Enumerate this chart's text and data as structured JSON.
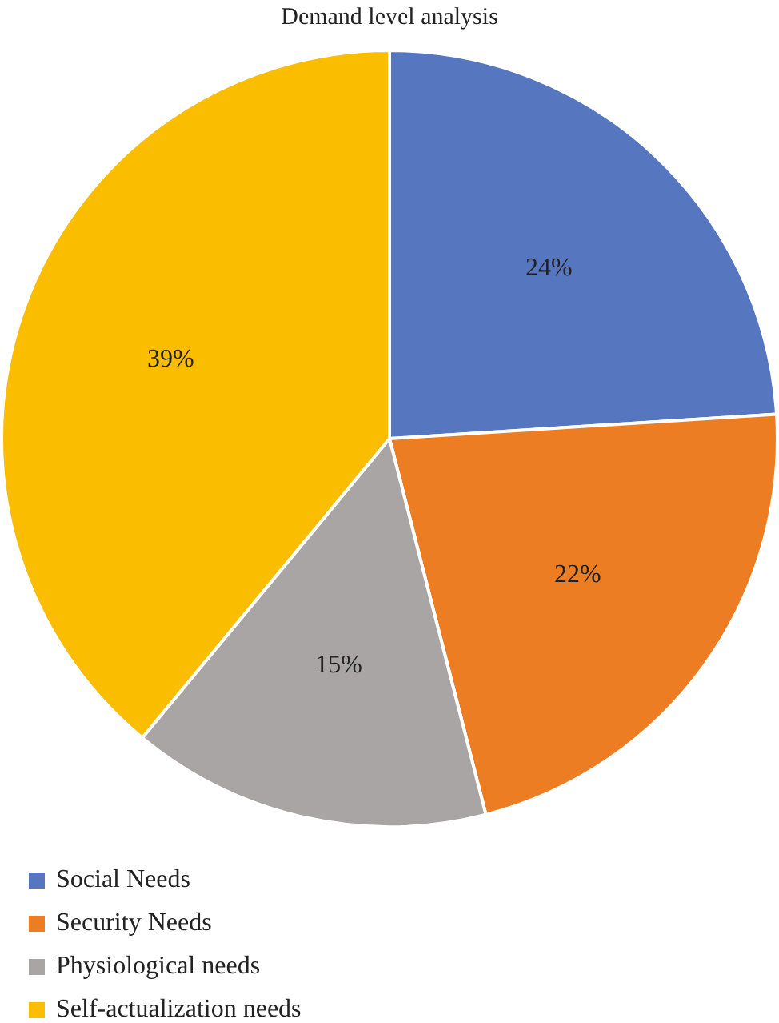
{
  "chart_data": {
    "type": "pie",
    "title": "Demand level analysis",
    "categories": [
      "Social Needs",
      "Security Needs",
      "Physiological needs",
      "Self-actualization needs"
    ],
    "values": [
      24,
      22,
      15,
      39
    ],
    "colors": [
      "#5676bf",
      "#ed7d23",
      "#a9a5a4",
      "#fbbd00"
    ],
    "value_labels": [
      "24%",
      "22%",
      "15%",
      "39%"
    ],
    "legend": "bottom left"
  }
}
